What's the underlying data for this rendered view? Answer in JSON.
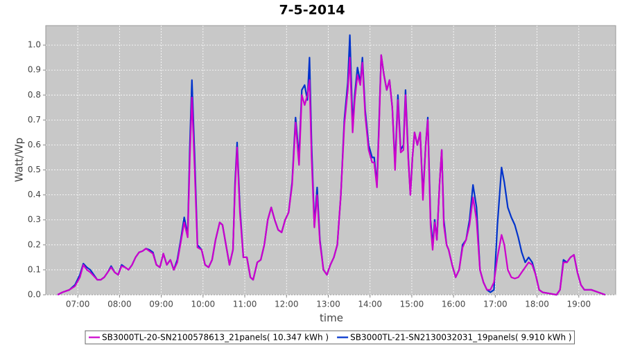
{
  "chart_data": {
    "type": "line",
    "title": "7-5-2014",
    "x_label": "time",
    "y_label": "Watt/Wp",
    "xlim": [
      "06:14",
      "19:53"
    ],
    "xticks": [
      "07:00",
      "08:00",
      "09:00",
      "10:00",
      "11:00",
      "12:00",
      "13:00",
      "14:00",
      "15:00",
      "16:00",
      "17:00",
      "18:00",
      "19:00"
    ],
    "ylim": [
      0,
      1.078
    ],
    "yticks": [
      {
        "value": 0,
        "label": "0.0"
      },
      0.1,
      0.2,
      0.3,
      0.4,
      0.5,
      0.6,
      0.7,
      0.8,
      0.9,
      {
        "value": 1,
        "label": "1.0"
      }
    ],
    "grid": true,
    "legend": "bottom",
    "background": "#c8c8c8",
    "x": [
      "06:31",
      "06:38",
      "06:48",
      "06:56",
      "07:03",
      "07:08",
      "07:13",
      "07:18",
      "07:23",
      "07:28",
      "07:33",
      "07:38",
      "07:43",
      "07:48",
      "07:53",
      "07:58",
      "08:03",
      "08:08",
      "08:13",
      "08:18",
      "08:23",
      "08:28",
      "08:33",
      "08:38",
      "08:43",
      "08:48",
      "08:53",
      "08:58",
      "09:03",
      "09:08",
      "09:13",
      "09:18",
      "09:23",
      "09:28",
      "09:33",
      "09:38",
      "09:41",
      "09:44",
      "09:48",
      "09:52",
      "09:58",
      "10:03",
      "10:08",
      "10:13",
      "10:18",
      "10:24",
      "10:28",
      "10:33",
      "10:38",
      "10:43",
      "10:46",
      "10:49",
      "10:53",
      "10:58",
      "11:03",
      "11:08",
      "11:12",
      "11:18",
      "11:23",
      "11:28",
      "11:33",
      "11:38",
      "11:43",
      "11:48",
      "11:53",
      "11:58",
      "12:03",
      "12:08",
      "12:13",
      "12:18",
      "12:22",
      "12:26",
      "12:30",
      "12:33",
      "12:36",
      "12:40",
      "12:44",
      "12:48",
      "12:53",
      "12:58",
      "13:03",
      "13:08",
      "13:13",
      "13:18",
      "13:23",
      "13:28",
      "13:31",
      "13:35",
      "13:38",
      "13:42",
      "13:46",
      "13:49",
      "13:53",
      "13:58",
      "14:03",
      "14:06",
      "14:10",
      "14:13",
      "14:16",
      "14:20",
      "14:24",
      "14:28",
      "14:32",
      "14:36",
      "14:40",
      "14:44",
      "14:48",
      "14:51",
      "14:55",
      "14:58",
      "15:01",
      "15:04",
      "15:08",
      "15:12",
      "15:16",
      "15:20",
      "15:23",
      "15:27",
      "15:30",
      "15:33",
      "15:36",
      "15:40",
      "15:43",
      "15:46",
      "15:50",
      "15:53",
      "15:58",
      "16:03",
      "16:08",
      "16:13",
      "16:18",
      "16:23",
      "16:28",
      "16:33",
      "16:38",
      "16:43",
      "16:48",
      "16:53",
      "16:58",
      "17:03",
      "17:09",
      "17:13",
      "17:18",
      "17:23",
      "17:28",
      "17:33",
      "17:38",
      "17:43",
      "17:48",
      "17:53",
      "17:58",
      "18:03",
      "18:08",
      "18:18",
      "18:28",
      "18:33",
      "18:38",
      "18:43",
      "18:48",
      "18:53",
      "18:58",
      "19:03",
      "19:08",
      "19:18",
      "19:28",
      "19:38"
    ],
    "series": [
      {
        "name": "SB3000TL-20-SN2100578613_21panels( 10.347 kWh )",
        "color": "#cc00cc",
        "values": [
          0,
          0.01,
          0.02,
          0.035,
          0.07,
          0.12,
          0.1,
          0.09,
          0.075,
          0.06,
          0.06,
          0.07,
          0.09,
          0.11,
          0.09,
          0.08,
          0.115,
          0.11,
          0.1,
          0.12,
          0.15,
          0.17,
          0.175,
          0.185,
          0.175,
          0.165,
          0.12,
          0.11,
          0.165,
          0.12,
          0.14,
          0.1,
          0.13,
          0.21,
          0.29,
          0.23,
          0.55,
          0.79,
          0.5,
          0.19,
          0.18,
          0.12,
          0.11,
          0.14,
          0.22,
          0.29,
          0.28,
          0.2,
          0.12,
          0.18,
          0.43,
          0.59,
          0.33,
          0.15,
          0.15,
          0.07,
          0.06,
          0.13,
          0.14,
          0.2,
          0.3,
          0.35,
          0.3,
          0.26,
          0.25,
          0.3,
          0.33,
          0.44,
          0.69,
          0.52,
          0.8,
          0.76,
          0.8,
          0.86,
          0.55,
          0.27,
          0.4,
          0.21,
          0.1,
          0.08,
          0.12,
          0.15,
          0.2,
          0.4,
          0.68,
          0.82,
          0.95,
          0.65,
          0.78,
          0.88,
          0.84,
          0.93,
          0.72,
          0.58,
          0.53,
          0.53,
          0.43,
          0.68,
          0.96,
          0.88,
          0.82,
          0.86,
          0.75,
          0.5,
          0.78,
          0.57,
          0.58,
          0.8,
          0.54,
          0.4,
          0.55,
          0.65,
          0.6,
          0.65,
          0.38,
          0.6,
          0.7,
          0.28,
          0.18,
          0.29,
          0.22,
          0.45,
          0.58,
          0.28,
          0.2,
          0.18,
          0.12,
          0.07,
          0.1,
          0.19,
          0.22,
          0.28,
          0.39,
          0.3,
          0.1,
          0.05,
          0.02,
          0.02,
          0.05,
          0.15,
          0.24,
          0.2,
          0.1,
          0.07,
          0.065,
          0.07,
          0.09,
          0.11,
          0.13,
          0.12,
          0.08,
          0.02,
          0.01,
          0.005,
          0,
          0.02,
          0.13,
          0.13,
          0.15,
          0.16,
          0.09,
          0.04,
          0.02,
          0.02,
          0.01,
          0
        ]
      },
      {
        "name": "SB3000TL-21-SN2130032031_19panels( 9.910 kWh )",
        "color": "#0033cc",
        "values": [
          0,
          0.01,
          0.02,
          0.04,
          0.08,
          0.125,
          0.11,
          0.1,
          0.08,
          0.06,
          0.06,
          0.07,
          0.09,
          0.115,
          0.09,
          0.08,
          0.12,
          0.11,
          0.1,
          0.12,
          0.15,
          0.17,
          0.175,
          0.185,
          0.18,
          0.17,
          0.12,
          0.11,
          0.165,
          0.12,
          0.14,
          0.1,
          0.14,
          0.22,
          0.31,
          0.24,
          0.6,
          0.86,
          0.55,
          0.2,
          0.18,
          0.12,
          0.11,
          0.14,
          0.22,
          0.29,
          0.28,
          0.2,
          0.12,
          0.18,
          0.45,
          0.61,
          0.35,
          0.15,
          0.15,
          0.07,
          0.06,
          0.13,
          0.14,
          0.2,
          0.3,
          0.35,
          0.3,
          0.26,
          0.25,
          0.3,
          0.33,
          0.45,
          0.71,
          0.55,
          0.82,
          0.84,
          0.78,
          0.95,
          0.6,
          0.28,
          0.43,
          0.22,
          0.1,
          0.08,
          0.12,
          0.15,
          0.2,
          0.4,
          0.7,
          0.85,
          1.04,
          0.68,
          0.8,
          0.91,
          0.85,
          0.95,
          0.74,
          0.6,
          0.55,
          0.55,
          0.44,
          0.7,
          0.96,
          0.88,
          0.82,
          0.86,
          0.75,
          0.52,
          0.8,
          0.58,
          0.6,
          0.82,
          0.55,
          0.4,
          0.55,
          0.65,
          0.6,
          0.65,
          0.4,
          0.6,
          0.71,
          0.3,
          0.2,
          0.3,
          0.22,
          0.45,
          0.58,
          0.3,
          0.2,
          0.18,
          0.12,
          0.07,
          0.1,
          0.2,
          0.22,
          0.3,
          0.44,
          0.35,
          0.1,
          0.05,
          0.02,
          0.01,
          0.02,
          0.28,
          0.51,
          0.45,
          0.35,
          0.31,
          0.28,
          0.23,
          0.17,
          0.13,
          0.15,
          0.13,
          0.08,
          0.02,
          0.01,
          0.005,
          0,
          0.02,
          0.14,
          0.13,
          0.15,
          0.16,
          0.09,
          0.04,
          0.02,
          0.02,
          0.01,
          0
        ]
      }
    ]
  }
}
